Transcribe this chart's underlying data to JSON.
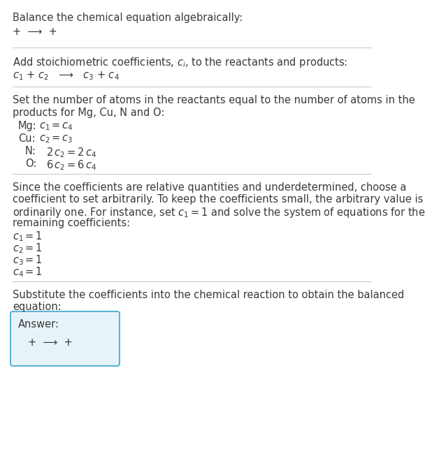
{
  "title": "Balance the chemical equation algebraically:",
  "line1": "+  ⟶  +",
  "section1_label": "Add stoichiometric coefficients, $c_i$, to the reactants and products:",
  "coeff_eq": "$c_1$ + $c_2$   ⟶   $c_3$ + $c_4$",
  "section2_label_1": "Set the number of atoms in the reactants equal to the number of atoms in the",
  "section2_label_2": "products for Mg, Cu, N and O:",
  "atom_eqs": [
    [
      "Mg:",
      "$c_1 = c_4$",
      0.0
    ],
    [
      "Cu:",
      "$c_2 = c_3$",
      0.0
    ],
    [
      "N:",
      "$2\\,c_2 = 2\\,c_4$",
      0.025
    ],
    [
      "O:",
      "$6\\,c_2 = 6\\,c_4$",
      0.025
    ]
  ],
  "section3_label_1": "Since the coefficients are relative quantities and underdetermined, choose a",
  "section3_label_2": "coefficient to set arbitrarily. To keep the coefficients small, the arbitrary value is",
  "section3_label_3": "ordinarily one. For instance, set $c_1 = 1$ and solve the system of equations for the",
  "section3_label_4": "remaining coefficients:",
  "solution": [
    "$c_1 = 1$",
    "$c_2 = 1$",
    "$c_3 = 1$",
    "$c_4 = 1$"
  ],
  "section4_label_1": "Substitute the coefficients into the chemical reaction to obtain the balanced",
  "section4_label_2": "equation:",
  "answer_label": "Answer:",
  "answer_eq": "+  ⟶  +",
  "bg_color": "#ffffff",
  "text_color": "#3a3a3a",
  "line_color": "#cccccc",
  "answer_box_facecolor": "#e6f4f9",
  "answer_box_edgecolor": "#5ab4d6",
  "font_size": 10.5,
  "mono_font_size": 10.0
}
